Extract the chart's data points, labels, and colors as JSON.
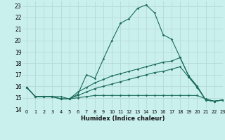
{
  "xlabel": "Humidex (Indice chaleur)",
  "background_color": "#caf0ee",
  "grid_color": "#b8dcd8",
  "line_color": "#1a6b5a",
  "xlim": [
    -0.5,
    23
  ],
  "ylim": [
    14,
    23.4
  ],
  "yticks": [
    14,
    15,
    16,
    17,
    18,
    19,
    20,
    21,
    22,
    23
  ],
  "xticks": [
    0,
    1,
    2,
    3,
    4,
    5,
    6,
    7,
    8,
    9,
    10,
    11,
    12,
    13,
    14,
    15,
    16,
    17,
    18,
    19,
    20,
    21,
    22,
    23
  ],
  "lines": [
    {
      "x": [
        0,
        1,
        2,
        3,
        4,
        5,
        6,
        7,
        8,
        9,
        10,
        11,
        12,
        13,
        14,
        15,
        16,
        17,
        18,
        19,
        20,
        21,
        22,
        23
      ],
      "y": [
        15.9,
        15.1,
        15.1,
        15.1,
        15.1,
        14.9,
        15.3,
        17.0,
        16.7,
        18.4,
        20.0,
        21.5,
        21.9,
        22.8,
        23.1,
        22.4,
        20.5,
        20.1,
        18.5,
        16.9,
        16.0,
        14.8,
        14.7,
        14.8
      ]
    },
    {
      "x": [
        0,
        1,
        2,
        3,
        4,
        5,
        6,
        7,
        8,
        9,
        10,
        11,
        12,
        13,
        14,
        15,
        16,
        17,
        18,
        19,
        20,
        21,
        22,
        23
      ],
      "y": [
        15.9,
        15.1,
        15.1,
        15.1,
        14.9,
        14.9,
        15.5,
        15.9,
        16.3,
        16.6,
        16.9,
        17.1,
        17.3,
        17.5,
        17.7,
        17.9,
        18.1,
        18.2,
        18.5,
        16.9,
        16.0,
        14.8,
        14.7,
        14.8
      ]
    },
    {
      "x": [
        0,
        1,
        2,
        3,
        4,
        5,
        6,
        7,
        8,
        9,
        10,
        11,
        12,
        13,
        14,
        15,
        16,
        17,
        18,
        19,
        20,
        21,
        22,
        23
      ],
      "y": [
        15.9,
        15.1,
        15.1,
        15.1,
        14.9,
        14.9,
        15.2,
        15.5,
        15.8,
        16.0,
        16.2,
        16.4,
        16.6,
        16.8,
        17.0,
        17.2,
        17.3,
        17.5,
        17.7,
        16.8,
        15.9,
        14.8,
        14.7,
        14.8
      ]
    },
    {
      "x": [
        0,
        1,
        2,
        3,
        4,
        5,
        6,
        7,
        8,
        9,
        10,
        11,
        12,
        13,
        14,
        15,
        16,
        17,
        18,
        19,
        20,
        21,
        22,
        23
      ],
      "y": [
        15.9,
        15.1,
        15.1,
        15.1,
        14.9,
        14.9,
        15.0,
        15.1,
        15.2,
        15.2,
        15.2,
        15.2,
        15.2,
        15.2,
        15.2,
        15.2,
        15.2,
        15.2,
        15.2,
        15.2,
        15.2,
        14.9,
        14.7,
        14.8
      ]
    }
  ]
}
